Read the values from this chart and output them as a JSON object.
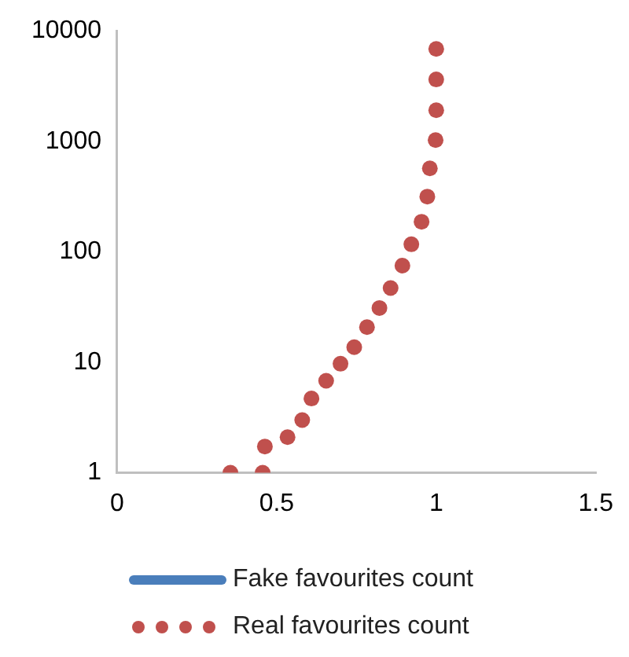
{
  "chart_data": {
    "type": "scatter",
    "log": "y",
    "xlim": [
      0,
      1.5
    ],
    "xticks": [
      0,
      0.5,
      1,
      1.5
    ],
    "ylim": [
      1,
      10000
    ],
    "yticks": [
      1,
      10,
      100,
      1000,
      10000
    ],
    "grid": false,
    "legend": "bottom",
    "series": [
      {
        "name": "Fake favourites count",
        "type": "line",
        "color": "#4a7ebb",
        "marker": "none"
      },
      {
        "name": "Real favourites count",
        "color": "#c0504d",
        "marker": "circle",
        "x": [
          0.355,
          0.456,
          0.463,
          0.534,
          0.58,
          0.609,
          0.655,
          0.7,
          0.743,
          0.783,
          0.822,
          0.857,
          0.894,
          0.922,
          0.954,
          0.972,
          0.98,
          0.998,
          1.0,
          1.0,
          1.0
        ],
        "values": [
          1,
          1,
          1.73,
          2.1,
          3,
          4.7,
          6.8,
          9.7,
          13.7,
          20.8,
          31,
          47,
          75,
          117,
          187,
          316,
          569,
          1025,
          1910,
          3630,
          6860
        ]
      }
    ]
  }
}
